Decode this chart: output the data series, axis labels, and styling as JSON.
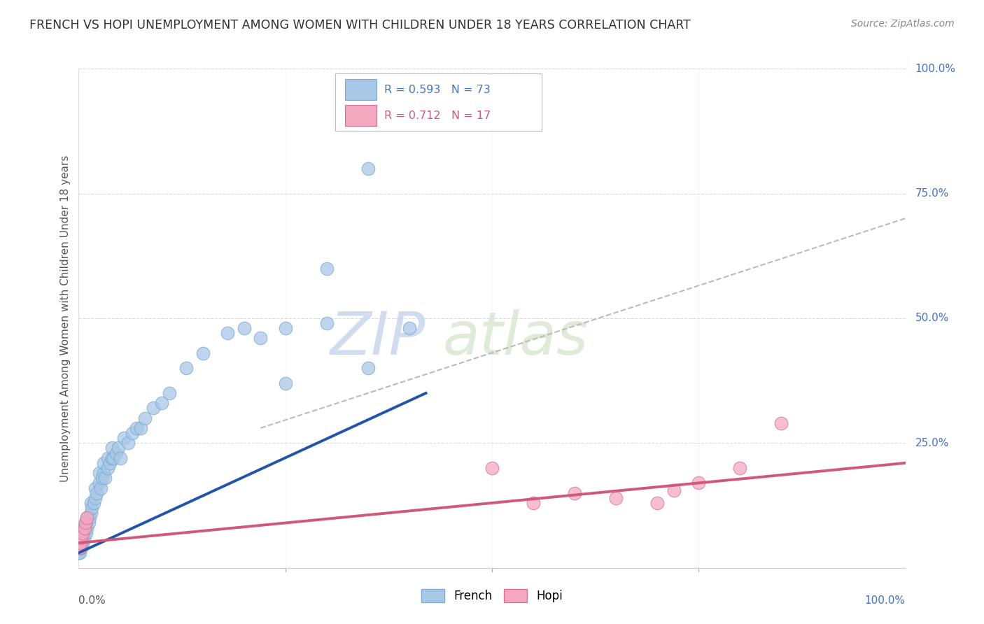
{
  "title": "FRENCH VS HOPI UNEMPLOYMENT AMONG WOMEN WITH CHILDREN UNDER 18 YEARS CORRELATION CHART",
  "source": "Source: ZipAtlas.com",
  "ylabel": "Unemployment Among Women with Children Under 18 years",
  "french_color": "#A8C8E8",
  "french_edge": "#7AAAD0",
  "hopi_color": "#F4A8C0",
  "hopi_edge": "#D87090",
  "french_line_color": "#2255AA",
  "hopi_line_color": "#D05878",
  "ref_line_color": "#BBBBBB",
  "background_color": "#FFFFFF",
  "grid_color": "#CCCCCC",
  "watermark_color": "#D8E4F0",
  "french_scatter_x": [
    0.0,
    0.0,
    0.0,
    0.0,
    0.0,
    0.001,
    0.001,
    0.001,
    0.002,
    0.002,
    0.002,
    0.003,
    0.003,
    0.003,
    0.004,
    0.004,
    0.005,
    0.005,
    0.005,
    0.006,
    0.006,
    0.007,
    0.008,
    0.008,
    0.009,
    0.01,
    0.01,
    0.012,
    0.013,
    0.015,
    0.015,
    0.016,
    0.018,
    0.02,
    0.02,
    0.022,
    0.025,
    0.025,
    0.027,
    0.028,
    0.03,
    0.03,
    0.032,
    0.035,
    0.035,
    0.038,
    0.04,
    0.04,
    0.042,
    0.045,
    0.048,
    0.05,
    0.055,
    0.06,
    0.065,
    0.07,
    0.075,
    0.08,
    0.09,
    0.1,
    0.11,
    0.13,
    0.15,
    0.18,
    0.2,
    0.25,
    0.3,
    0.35,
    0.4,
    0.3,
    0.25,
    0.22,
    0.35
  ],
  "french_scatter_y": [
    0.03,
    0.03,
    0.04,
    0.05,
    0.06,
    0.03,
    0.04,
    0.05,
    0.04,
    0.05,
    0.06,
    0.04,
    0.05,
    0.06,
    0.05,
    0.07,
    0.05,
    0.07,
    0.08,
    0.06,
    0.08,
    0.07,
    0.08,
    0.09,
    0.07,
    0.08,
    0.1,
    0.09,
    0.1,
    0.11,
    0.13,
    0.12,
    0.13,
    0.14,
    0.16,
    0.15,
    0.17,
    0.19,
    0.16,
    0.18,
    0.19,
    0.21,
    0.18,
    0.2,
    0.22,
    0.21,
    0.22,
    0.24,
    0.22,
    0.23,
    0.24,
    0.22,
    0.26,
    0.25,
    0.27,
    0.28,
    0.28,
    0.3,
    0.32,
    0.33,
    0.35,
    0.4,
    0.43,
    0.47,
    0.48,
    0.48,
    0.49,
    0.4,
    0.48,
    0.6,
    0.37,
    0.46,
    0.8
  ],
  "hopi_scatter_x": [
    0.0,
    0.001,
    0.002,
    0.003,
    0.005,
    0.007,
    0.008,
    0.01,
    0.5,
    0.55,
    0.6,
    0.65,
    0.7,
    0.72,
    0.75,
    0.8,
    0.85
  ],
  "hopi_scatter_y": [
    0.04,
    0.04,
    0.05,
    0.06,
    0.07,
    0.08,
    0.09,
    0.1,
    0.2,
    0.13,
    0.15,
    0.14,
    0.13,
    0.155,
    0.17,
    0.2,
    0.29
  ],
  "french_line_x0": 0.0,
  "french_line_x1": 0.42,
  "french_line_y0": 0.03,
  "french_line_y1": 0.35,
  "hopi_line_x0": 0.0,
  "hopi_line_x1": 1.0,
  "hopi_line_y0": 0.05,
  "hopi_line_y1": 0.21,
  "ref_line_x0": 0.22,
  "ref_line_x1": 1.0,
  "ref_line_y0": 0.28,
  "ref_line_y1": 0.7,
  "xlim": [
    0.0,
    1.0
  ],
  "ylim": [
    0.0,
    1.0
  ],
  "right_ytick_vals": [
    0.0,
    0.25,
    0.5,
    0.75,
    1.0
  ],
  "right_yticklabels": [
    "",
    "25.0%",
    "50.0%",
    "75.0%",
    "100.0%"
  ]
}
